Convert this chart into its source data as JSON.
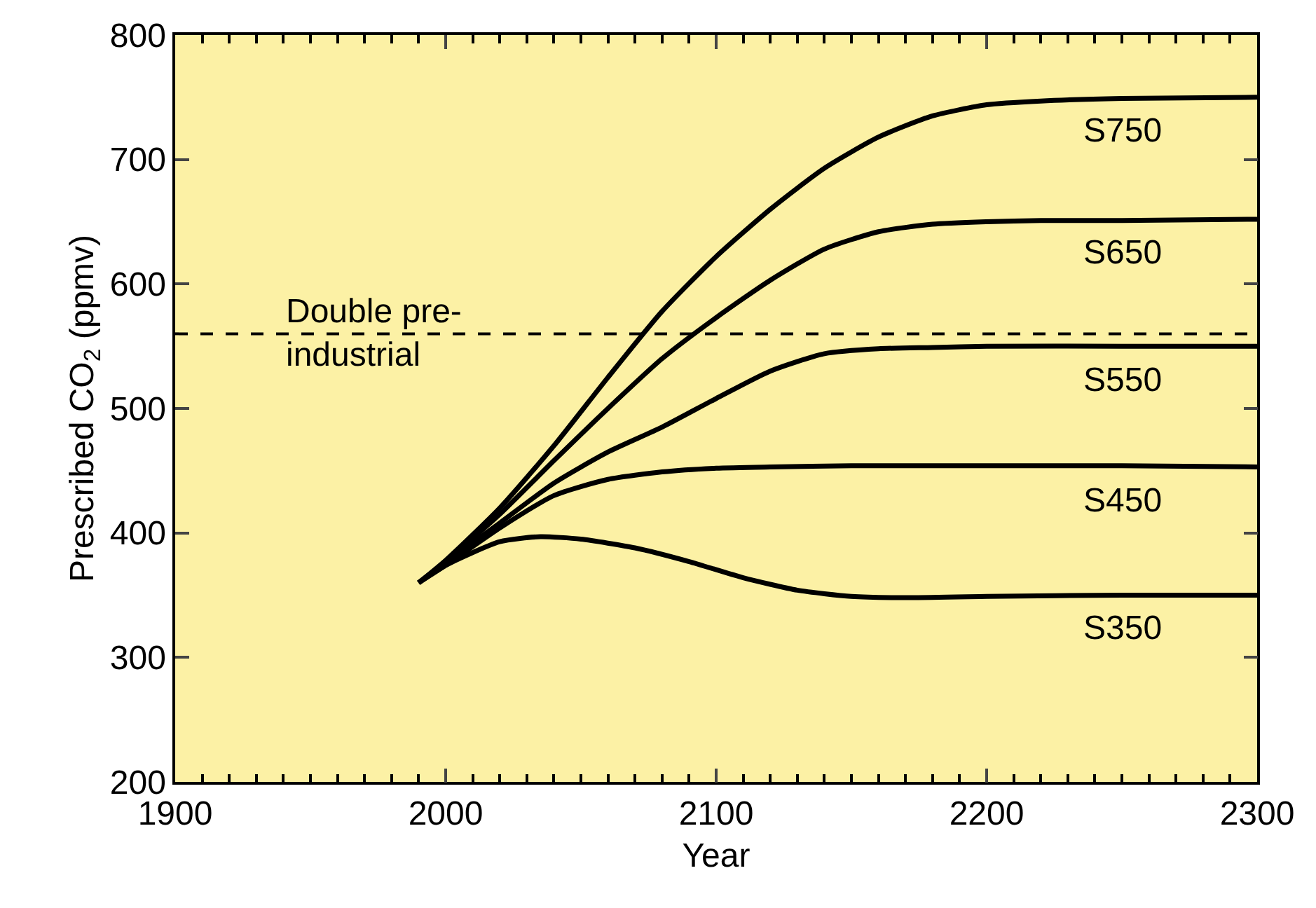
{
  "chart_data": {
    "type": "line",
    "xlabel": "Year",
    "ylabel": "Prescribed CO$_{2}$ (ppmv)",
    "xlim": [
      1900,
      2300
    ],
    "xticks": [
      1900,
      2000,
      2100,
      2200,
      2300
    ],
    "ylim": [
      200,
      800
    ],
    "yticks": [
      200,
      300,
      400,
      500,
      600,
      700,
      800
    ],
    "grid": false,
    "legend": false,
    "marker": "none",
    "line_style": "solid",
    "series": [
      {
        "name": "S750",
        "color": "#000000",
        "x": [
          1990,
          2000,
          2020,
          2040,
          2060,
          2080,
          2100,
          2120,
          2140,
          2160,
          2180,
          2200,
          2220,
          2250,
          2300
        ],
        "values": [
          360,
          378,
          420,
          470,
          525,
          578,
          622,
          660,
          693,
          718,
          735,
          744,
          747,
          749,
          750
        ]
      },
      {
        "name": "S650",
        "color": "#000000",
        "x": [
          1990,
          2000,
          2020,
          2040,
          2060,
          2080,
          2100,
          2120,
          2140,
          2160,
          2180,
          2200,
          2220,
          2250,
          2300
        ],
        "values": [
          360,
          377,
          415,
          458,
          500,
          540,
          573,
          603,
          628,
          642,
          648,
          650,
          651,
          651,
          652
        ]
      },
      {
        "name": "S550",
        "color": "#000000",
        "x": [
          1990,
          2000,
          2020,
          2040,
          2060,
          2080,
          2100,
          2120,
          2140,
          2160,
          2180,
          2200,
          2250,
          2300
        ],
        "values": [
          360,
          376,
          408,
          440,
          465,
          485,
          508,
          530,
          544,
          548,
          549,
          550,
          550,
          550
        ]
      },
      {
        "name": "S450",
        "color": "#000000",
        "x": [
          1990,
          2000,
          2020,
          2040,
          2060,
          2080,
          2100,
          2120,
          2150,
          2200,
          2250,
          2300
        ],
        "values": [
          360,
          374,
          404,
          430,
          443,
          449,
          452,
          453,
          454,
          454,
          454,
          453
        ]
      },
      {
        "name": "S350",
        "color": "#000000",
        "x": [
          1990,
          2000,
          2020,
          2035,
          2050,
          2070,
          2090,
          2110,
          2130,
          2150,
          2170,
          2200,
          2250,
          2300
        ],
        "values": [
          360,
          374,
          393,
          397,
          395,
          388,
          377,
          364,
          354,
          349,
          348,
          349,
          350,
          350
        ]
      }
    ],
    "ref_lines": [
      {
        "axis": "y",
        "value": 560,
        "label": "Double pre-industrial",
        "line_style": "dashed",
        "color": "#000000"
      }
    ]
  }
}
